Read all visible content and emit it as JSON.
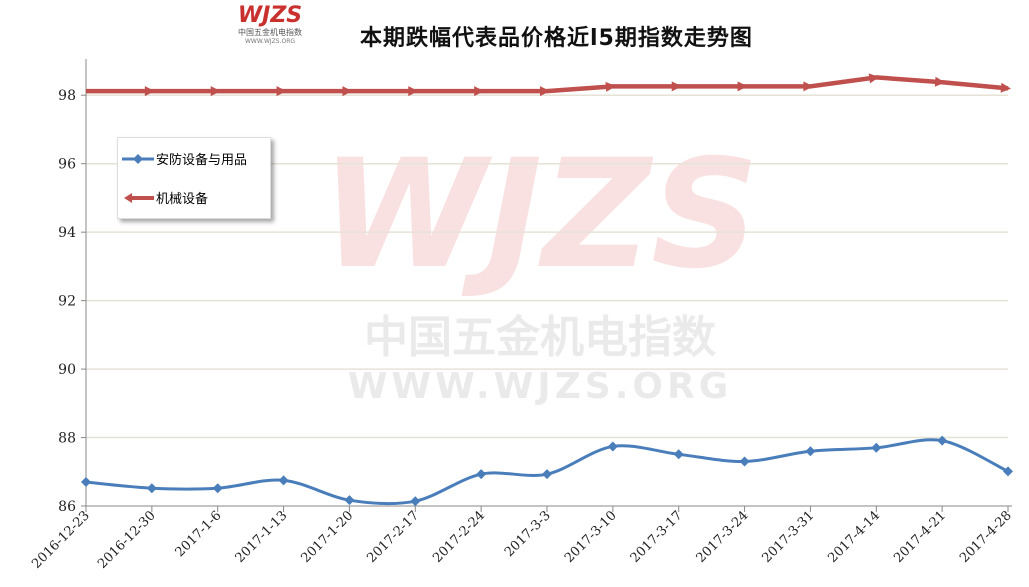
{
  "logo": {
    "mark": "WJZS",
    "name": "中国五金机电指数",
    "url": "WWW.WJZS.ORG"
  },
  "watermark": {
    "mark": "WJZS",
    "name": "中国五金机电指数",
    "url": "WWW.WJZS.ORG"
  },
  "chart_data": {
    "type": "line",
    "title": "本期跌幅代表品价格近l5期指数走势图",
    "xlabel": "",
    "ylabel": "",
    "categories": [
      "2016-12-23",
      "2016-12-30",
      "2017-1-6",
      "2017-1-13",
      "2017-1-20",
      "2017-2-17",
      "2017-2-24",
      "2017-3-3",
      "2017-3-10",
      "2017-3-17",
      "2017-3-24",
      "2017-3-31",
      "2017-4-14",
      "2017-4-21",
      "2017-4-28"
    ],
    "ylim": [
      86,
      99
    ],
    "yticks": [
      86,
      88,
      90,
      92,
      94,
      96,
      98
    ],
    "grid": true,
    "legend_position": "upper-left",
    "series": [
      {
        "name": "安防设备与用品",
        "color": "#4a7ebb",
        "marker": "diamond",
        "smooth": true,
        "values": [
          86.7,
          86.52,
          86.52,
          86.75,
          86.17,
          86.14,
          86.93,
          86.93,
          87.74,
          87.51,
          87.3,
          87.6,
          87.7,
          87.91,
          87.01
        ]
      },
      {
        "name": "机械设备",
        "color": "#c0504d",
        "marker": "arrow",
        "values": [
          98.12,
          98.12,
          98.12,
          98.12,
          98.12,
          98.12,
          98.12,
          98.12,
          98.26,
          98.26,
          98.26,
          98.26,
          98.52,
          98.38,
          98.2
        ]
      }
    ]
  }
}
